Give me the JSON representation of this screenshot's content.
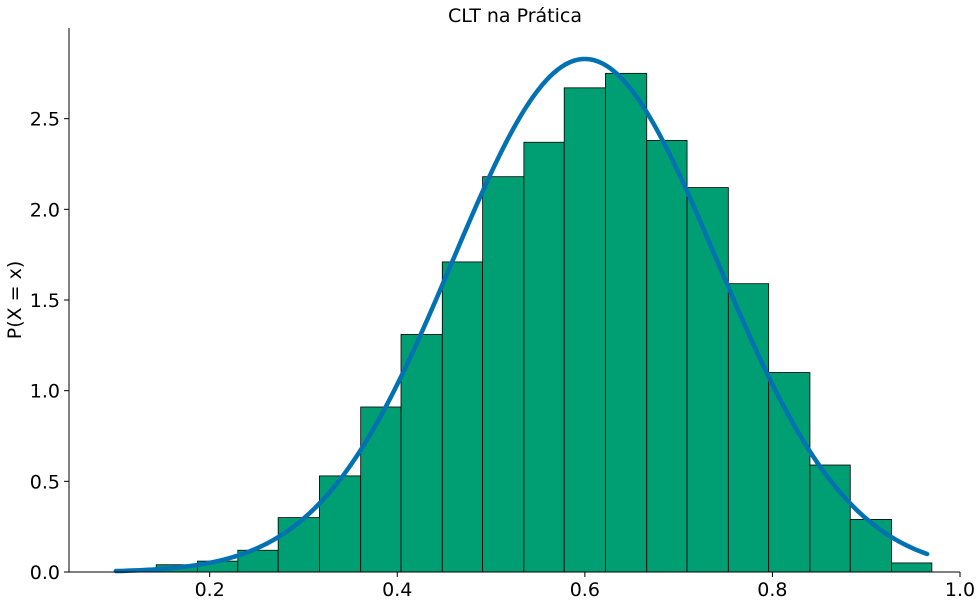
{
  "chart_data": {
    "type": "bar",
    "title": "CLT na Prática",
    "xlabel": "",
    "ylabel": "P(X = x)",
    "xlim": [
      0.05,
      1.0
    ],
    "ylim": [
      0,
      3.0
    ],
    "x_ticks": [
      "0.2",
      "0.4",
      "0.6",
      "0.8",
      "1.0"
    ],
    "y_ticks": [
      "0.0",
      "0.5",
      "1.0",
      "1.5",
      "2.0",
      "2.5"
    ],
    "grid": false,
    "bins": [
      {
        "left": 0.143,
        "right": 0.187,
        "value": 0.04
      },
      {
        "left": 0.187,
        "right": 0.23,
        "value": 0.06
      },
      {
        "left": 0.23,
        "right": 0.273,
        "value": 0.12
      },
      {
        "left": 0.273,
        "right": 0.317,
        "value": 0.3
      },
      {
        "left": 0.317,
        "right": 0.361,
        "value": 0.53
      },
      {
        "left": 0.361,
        "right": 0.404,
        "value": 0.91
      },
      {
        "left": 0.404,
        "right": 0.448,
        "value": 1.31
      },
      {
        "left": 0.448,
        "right": 0.491,
        "value": 1.71
      },
      {
        "left": 0.491,
        "right": 0.535,
        "value": 2.18
      },
      {
        "left": 0.535,
        "right": 0.578,
        "value": 2.37
      },
      {
        "left": 0.578,
        "right": 0.622,
        "value": 2.67
      },
      {
        "left": 0.622,
        "right": 0.666,
        "value": 2.75
      },
      {
        "left": 0.666,
        "right": 0.709,
        "value": 2.38
      },
      {
        "left": 0.709,
        "right": 0.753,
        "value": 2.12
      },
      {
        "left": 0.753,
        "right": 0.796,
        "value": 1.59
      },
      {
        "left": 0.796,
        "right": 0.84,
        "value": 1.1
      },
      {
        "left": 0.84,
        "right": 0.883,
        "value": 0.59
      },
      {
        "left": 0.883,
        "right": 0.927,
        "value": 0.29
      },
      {
        "left": 0.927,
        "right": 0.97,
        "value": 0.05
      }
    ],
    "curve": {
      "type": "normal-pdf",
      "mean": 0.6,
      "std": 0.141,
      "x_range": [
        0.1,
        0.965
      ],
      "color": "#0072b2"
    },
    "bar_color": "#009e73",
    "bar_edge_color": "#000000"
  }
}
